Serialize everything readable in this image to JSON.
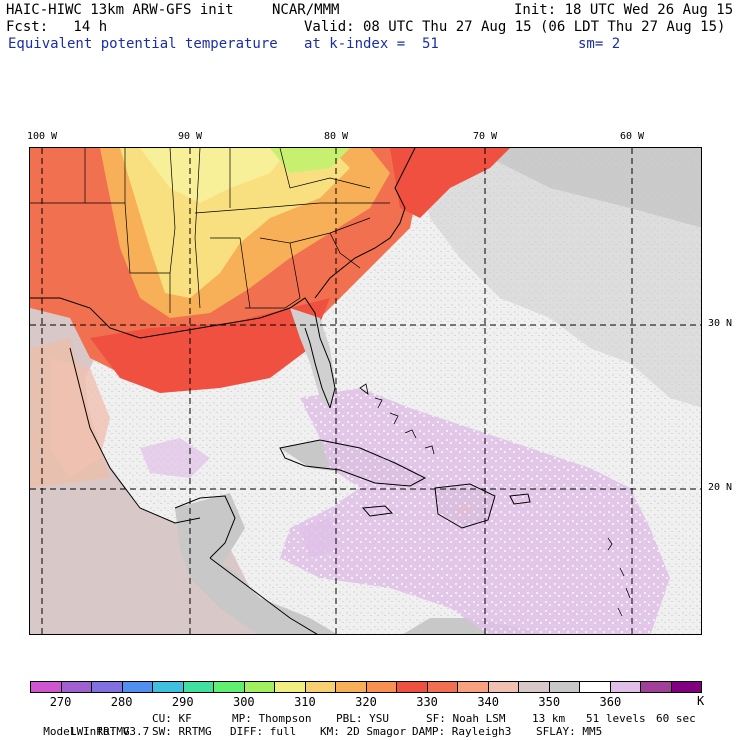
{
  "header": {
    "model_title": "HAIC-HIWC 13km ARW-GFS init",
    "center": "NCAR/MMM",
    "init": "Init: 18 UTC Wed 26 Aug 15",
    "fcst": "Fcst:   14 h",
    "valid": "Valid: 08 UTC Thu 27 Aug 15 (06 LDT Thu 27 Aug 15)",
    "field": "Equivalent potential temperature",
    "level": "at k-index =  51",
    "smoothing": "sm= 2"
  },
  "map": {
    "lon_labels": [
      "100 W",
      "90 W",
      "80 W",
      "70 W",
      "60 W"
    ],
    "lat_labels": [
      "30 N",
      "20 N"
    ]
  },
  "colorbar": {
    "colors": [
      "#d055d0",
      "#a060d0",
      "#8070e0",
      "#5090f0",
      "#40c0e0",
      "#40e0a0",
      "#60f070",
      "#a0f060",
      "#f0f080",
      "#f8d070",
      "#f8b058",
      "#f89050",
      "#f05040",
      "#f07050",
      "#f8a080",
      "#f0c0b0",
      "#d8c8c8",
      "#c8c8c8",
      "#ffffff",
      "#e0c0e8",
      "#a04098",
      "#800080"
    ],
    "labels": [
      "270",
      "280",
      "290",
      "300",
      "310",
      "320",
      "330",
      "340",
      "350",
      "360"
    ],
    "unit": "K"
  },
  "footer": {
    "line1": [
      "Model Info: V3.7",
      "CU: KF",
      "MP: Thompson",
      "PBL: YSU",
      "SF: Noah LSM",
      "13 km",
      "51 levels",
      "60 sec"
    ],
    "line2": [
      "LW: RRTMG",
      "SW: RRTMG",
      "DIFF: full",
      "KM: 2D Smagor",
      "DAMP: Rayleigh3",
      "SFLAY: MM5"
    ]
  }
}
